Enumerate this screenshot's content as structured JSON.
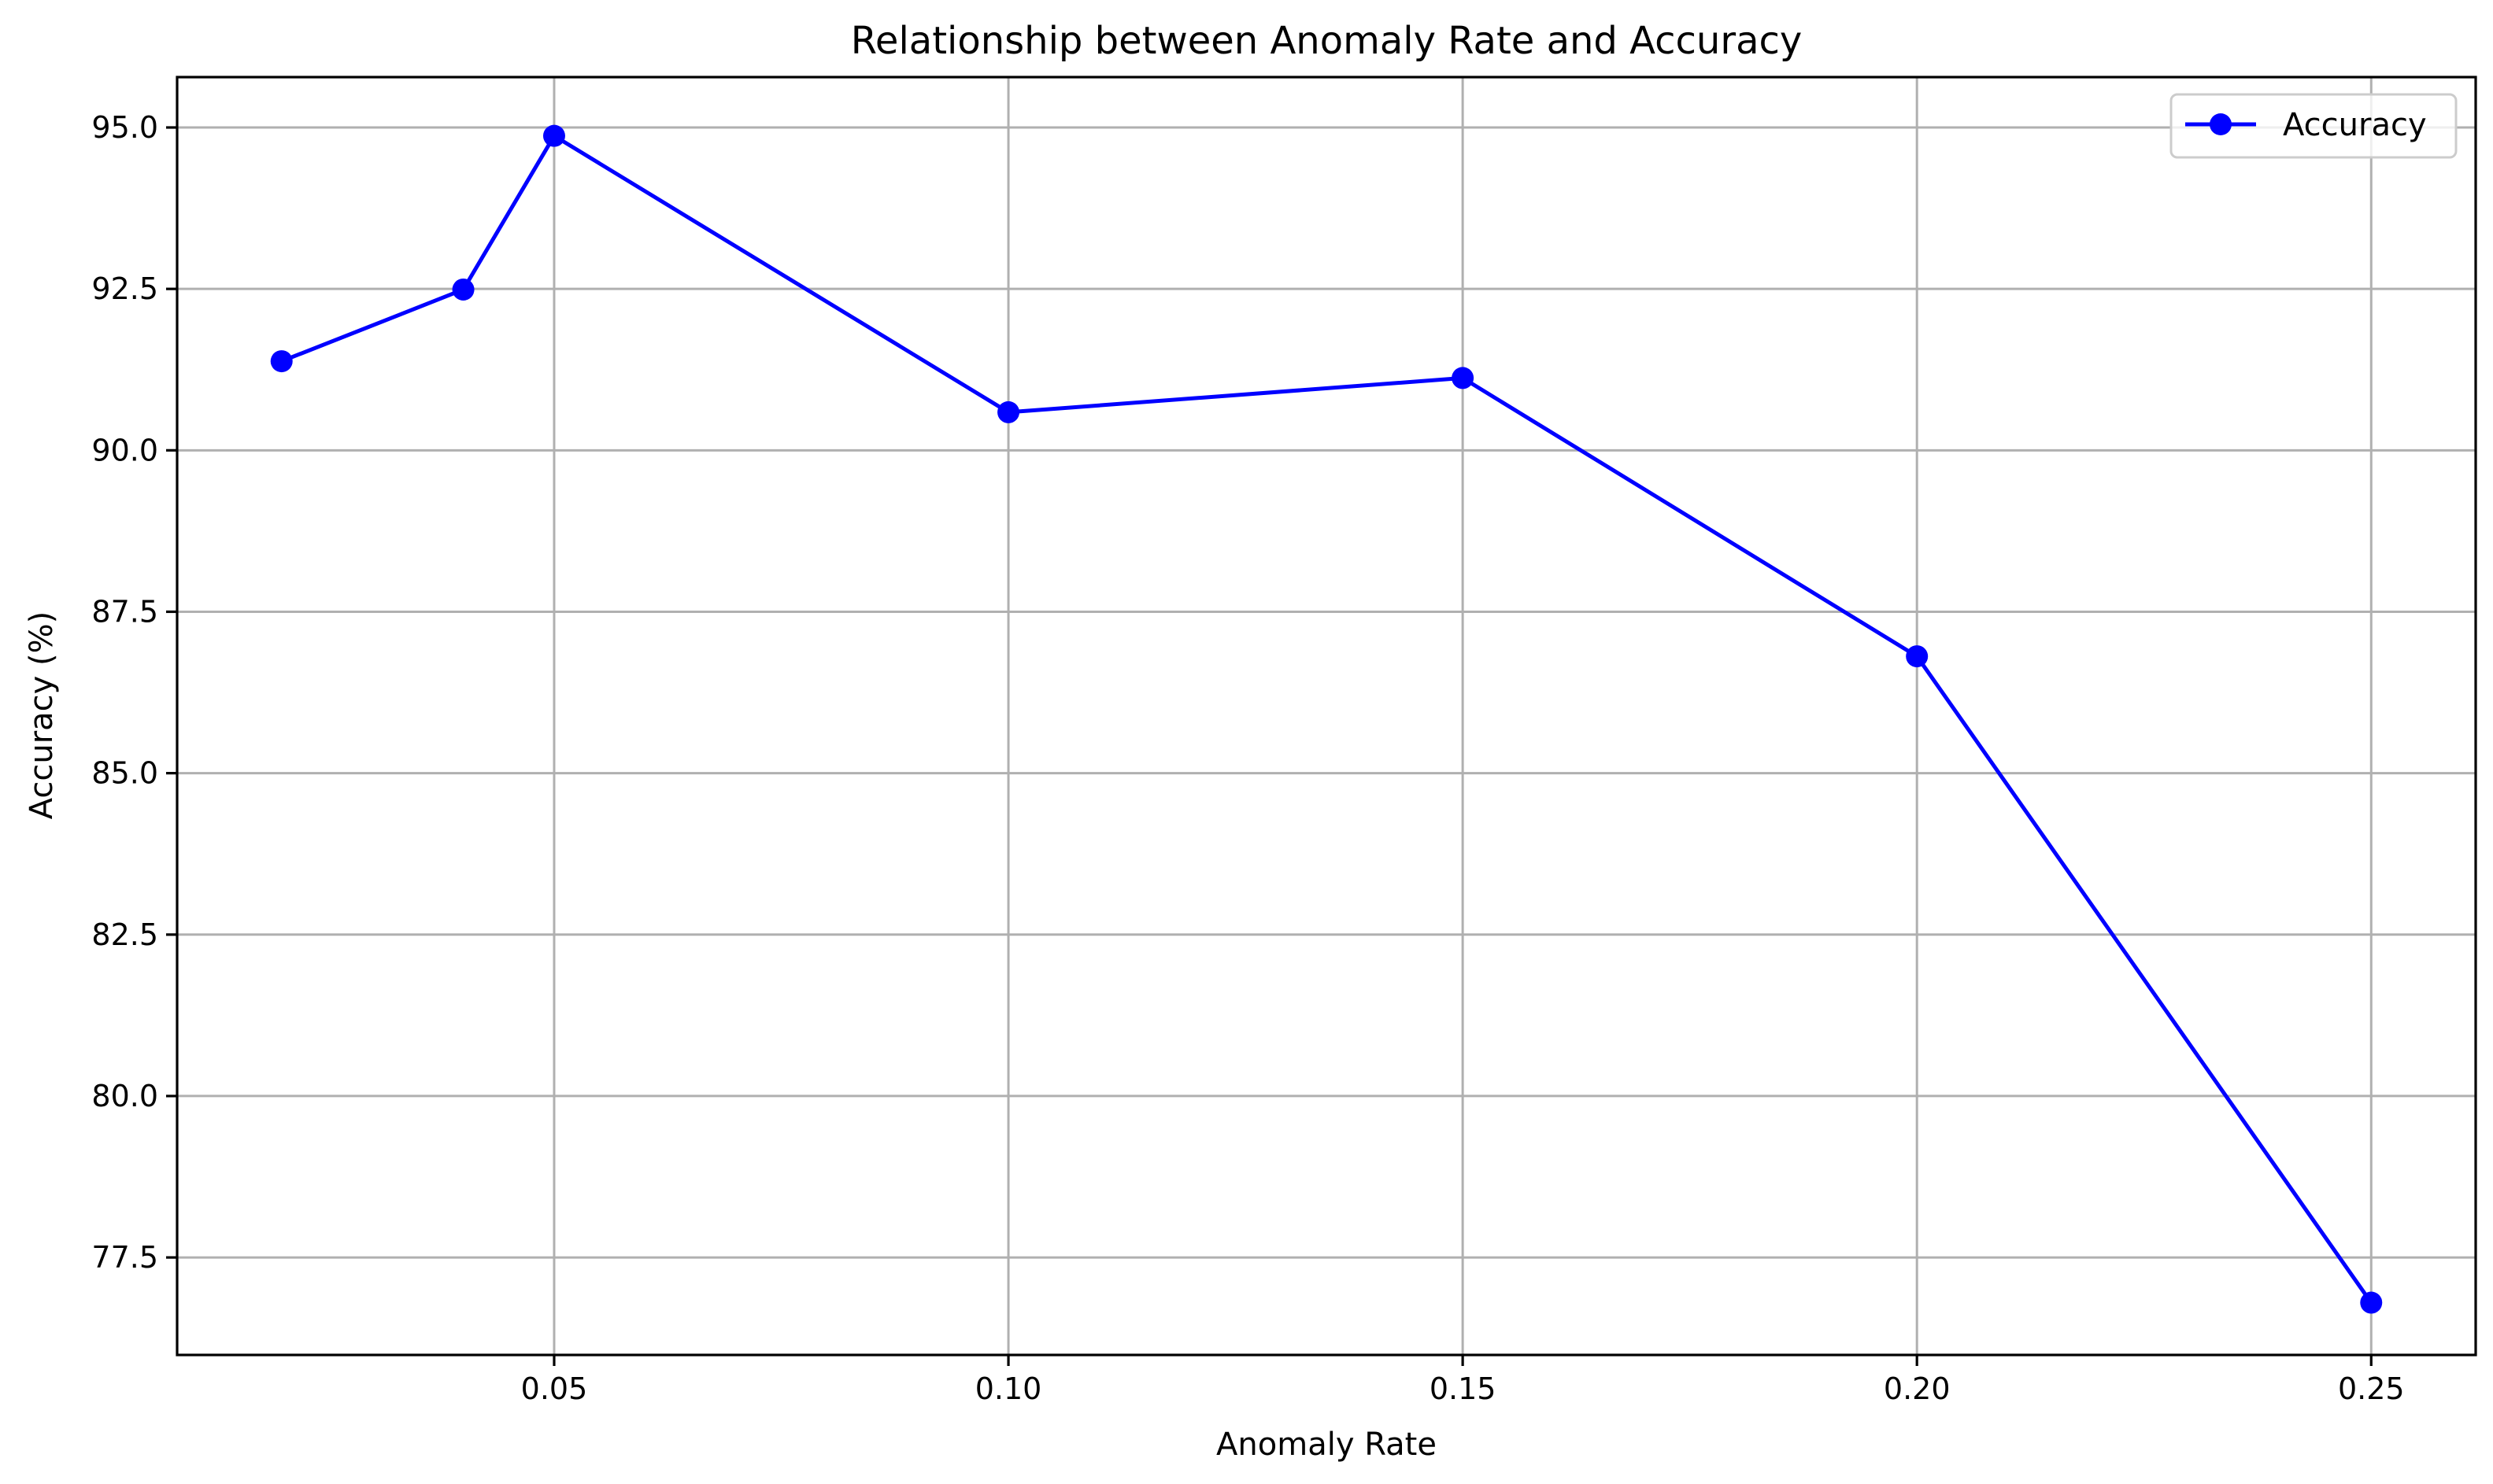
{
  "chart_data": {
    "type": "line",
    "title": "Relationship between Anomaly Rate and Accuracy",
    "xlabel": "Anomaly Rate",
    "ylabel": "Accuracy (%)",
    "xlim": [
      0.0085,
      0.2615
    ],
    "ylim": [
      75.99,
      95.78
    ],
    "x_ticks": [
      0.05,
      0.1,
      0.15,
      0.2,
      0.25
    ],
    "x_tick_labels": [
      "0.05",
      "0.10",
      "0.15",
      "0.20",
      "0.25"
    ],
    "y_ticks": [
      77.5,
      80.0,
      82.5,
      85.0,
      87.5,
      90.0,
      92.5,
      95.0
    ],
    "y_tick_labels": [
      "77.5",
      "80.0",
      "82.5",
      "85.0",
      "87.5",
      "90.0",
      "92.5",
      "95.0"
    ],
    "grid": true,
    "legend_position": "top-right",
    "series": [
      {
        "name": "Accuracy",
        "color": "#0000ff",
        "marker": "circle",
        "x": [
          0.02,
          0.04,
          0.05,
          0.1,
          0.15,
          0.2,
          0.25
        ],
        "y": [
          91.38,
          92.49,
          94.87,
          90.59,
          91.12,
          86.81,
          76.8
        ]
      }
    ]
  }
}
